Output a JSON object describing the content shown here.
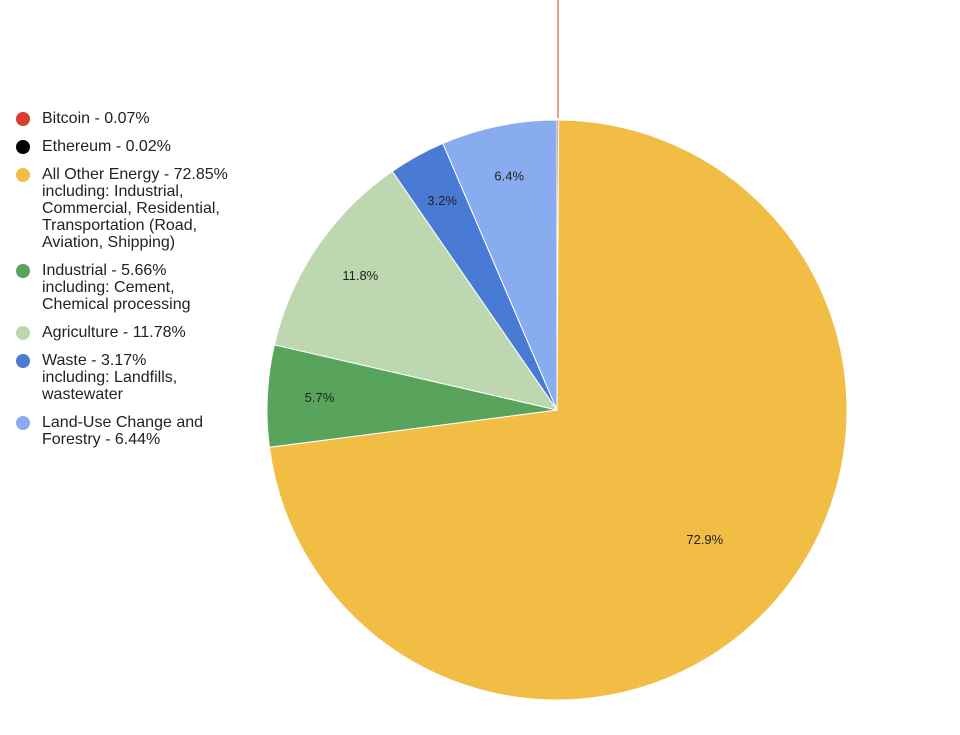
{
  "chart_data": {
    "type": "pie",
    "slices": [
      {
        "label": "Bitcoin",
        "value": 0.07,
        "color": "#d93b2e",
        "legend_lines": [
          "Bitcoin - 0.07%"
        ]
      },
      {
        "label": "Ethereum",
        "value": 0.02,
        "color": "#000000",
        "legend_lines": [
          "Ethereum - 0.02%"
        ]
      },
      {
        "label": "All Other Energy",
        "value": 72.85,
        "color": "#f1bd44",
        "data_label": "72.9%",
        "legend_lines": [
          "All Other Energy - 72.85%",
          "including: Industrial,",
          "Commercial, Residential,",
          "Transportation (Road,",
          "Aviation, Shipping)"
        ]
      },
      {
        "label": "Industrial",
        "value": 5.66,
        "color": "#58a45d",
        "data_label": "5.7%",
        "legend_lines": [
          "Industrial - 5.66%",
          "including: Cement,",
          "Chemical processing"
        ]
      },
      {
        "label": "Agriculture",
        "value": 11.78,
        "color": "#bdd7b0",
        "data_label": "11.8%",
        "legend_lines": [
          "Agriculture - 11.78%"
        ]
      },
      {
        "label": "Waste",
        "value": 3.17,
        "color": "#4a7bd4",
        "data_label": "3.2%",
        "legend_lines": [
          "Waste - 3.17%",
          "including: Landfills,",
          "wastewater"
        ]
      },
      {
        "label": "Land-Use Change and Forestry",
        "value": 6.44,
        "color": "#88acef",
        "data_label": "6.4%",
        "legend_lines": [
          "Land-Use Change and",
          "Forestry - 6.44%"
        ]
      }
    ],
    "legend_position": "left"
  }
}
